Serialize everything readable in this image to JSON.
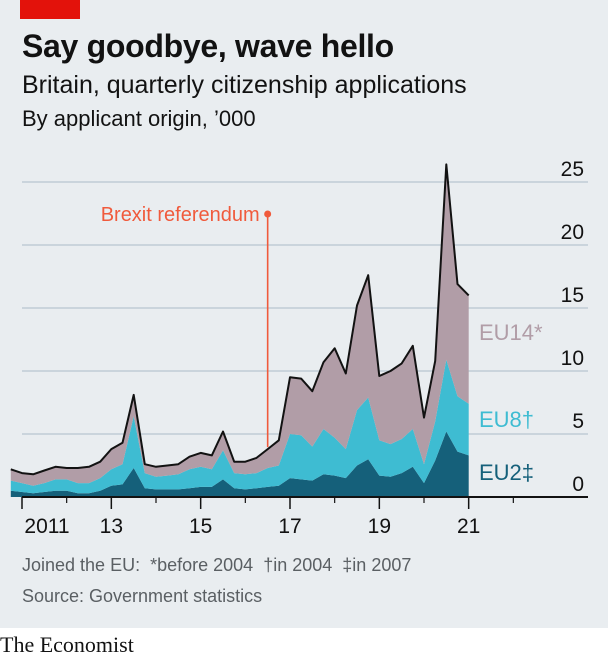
{
  "header": {
    "title": "Say goodbye, wave hello",
    "subtitle": "Britain, quarterly citizenship applications",
    "unit": "By applicant origin, ’000"
  },
  "footer": {
    "joined_label": "Joined the EU:",
    "note_eu14": "*before 2004",
    "note_eu8": "†in 2004",
    "note_eu2": "‡in 2007",
    "source": "Source: Government statistics",
    "brand": "The Economist"
  },
  "colors": {
    "EU2": "#15607a",
    "EU8": "#3ebcd2",
    "EU14": "#b19da7",
    "annotation": "#f05a3c",
    "background": "#e9edf0",
    "brand_red": "#e3120b"
  },
  "chart_data": {
    "type": "area",
    "stacked": true,
    "title": "Say goodbye, wave hello",
    "ylabel": "By applicant origin, ’000",
    "ylim": [
      0,
      25
    ],
    "yticks": [
      0,
      5,
      10,
      15,
      20,
      25
    ],
    "y_axis_side": "right",
    "grid": true,
    "xlim": [
      2011,
      2023
    ],
    "xticks": [
      {
        "value": 2011,
        "label": "2011"
      },
      {
        "value": 2013,
        "label": "13"
      },
      {
        "value": 2015,
        "label": "15"
      },
      {
        "value": 2017,
        "label": "17"
      },
      {
        "value": 2019,
        "label": "19"
      },
      {
        "value": 2021,
        "label": "21"
      }
    ],
    "x": [
      2010.75,
      2011.0,
      2011.25,
      2011.5,
      2011.75,
      2012.0,
      2012.25,
      2012.5,
      2012.75,
      2013.0,
      2013.25,
      2013.5,
      2013.75,
      2014.0,
      2014.25,
      2014.5,
      2014.75,
      2015.0,
      2015.25,
      2015.5,
      2015.75,
      2016.0,
      2016.25,
      2016.5,
      2016.75,
      2017.0,
      2017.25,
      2017.5,
      2017.75,
      2018.0,
      2018.25,
      2018.5,
      2018.75,
      2019.0,
      2019.25,
      2019.5,
      2019.75,
      2020.0,
      2020.25,
      2020.5,
      2020.75,
      2021.0
    ],
    "series": [
      {
        "name": "EU2",
        "label": "EU2‡",
        "values": [
          0.5,
          0.4,
          0.3,
          0.4,
          0.5,
          0.5,
          0.3,
          0.3,
          0.5,
          0.9,
          1.0,
          2.3,
          0.7,
          0.6,
          0.6,
          0.6,
          0.7,
          0.8,
          0.8,
          1.4,
          0.7,
          0.6,
          0.7,
          0.8,
          0.9,
          1.5,
          1.4,
          1.3,
          1.8,
          1.7,
          1.5,
          2.5,
          3.0,
          1.7,
          1.6,
          1.9,
          2.4,
          1.1,
          2.9,
          5.2,
          3.6,
          3.3
        ]
      },
      {
        "name": "EU8",
        "label": "EU8†",
        "values": [
          0.8,
          0.7,
          0.6,
          0.7,
          0.9,
          0.9,
          0.8,
          0.8,
          1.0,
          1.3,
          1.6,
          4.1,
          1.2,
          1.0,
          1.1,
          1.2,
          1.5,
          1.6,
          1.4,
          2.3,
          1.2,
          1.2,
          1.2,
          1.5,
          1.6,
          3.5,
          3.5,
          2.7,
          3.6,
          3.0,
          2.3,
          4.4,
          4.9,
          2.8,
          2.6,
          2.7,
          3.0,
          1.5,
          3.1,
          5.7,
          4.4,
          4.1
        ]
      },
      {
        "name": "EU14",
        "label": "EU14*",
        "values": [
          0.9,
          0.8,
          0.9,
          1.0,
          1.0,
          0.9,
          1.2,
          1.3,
          1.3,
          1.6,
          1.7,
          1.7,
          0.7,
          0.8,
          0.8,
          0.8,
          1.0,
          1.1,
          1.1,
          1.5,
          0.9,
          1.0,
          1.2,
          1.5,
          2.0,
          4.5,
          4.5,
          4.4,
          5.3,
          7.1,
          6.0,
          8.3,
          9.7,
          5.1,
          5.8,
          6.0,
          6.6,
          3.7,
          4.8,
          15.5,
          8.9,
          8.6
        ]
      }
    ],
    "series_labels": [
      "EU14*",
      "EU8†",
      "EU2‡"
    ],
    "annotations": [
      {
        "text": "Brexit referendum",
        "x": 2016.5
      }
    ]
  }
}
